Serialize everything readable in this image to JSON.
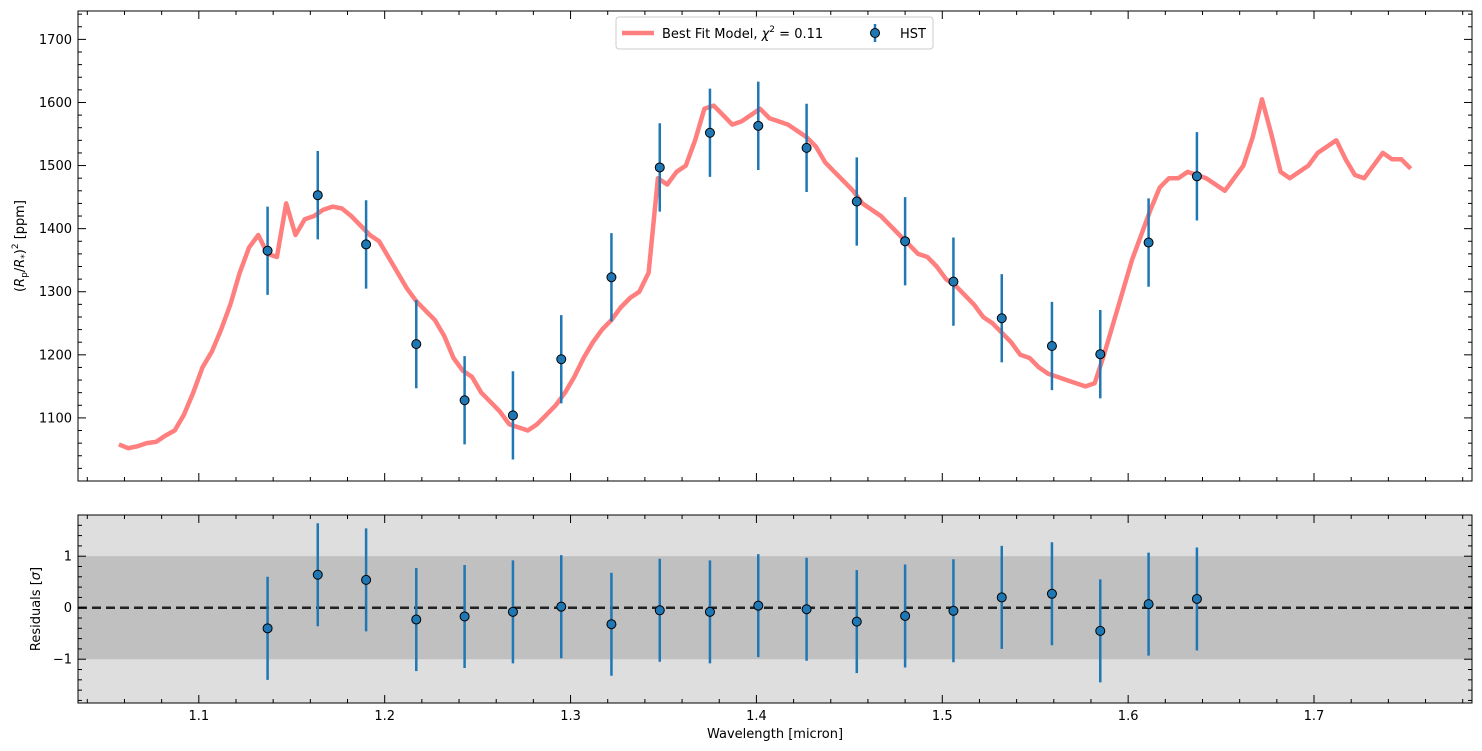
{
  "chart_data": [
    {
      "type": "line",
      "panel": "top",
      "ylabel": "(R_p/R_*)^2 [ppm]",
      "xlim": [
        1.035,
        1.785
      ],
      "ylim": [
        1000,
        1745
      ],
      "x_ticks": [
        1.1,
        1.2,
        1.3,
        1.4,
        1.5,
        1.6,
        1.7
      ],
      "y_ticks": [
        1100,
        1200,
        1300,
        1400,
        1500,
        1600,
        1700
      ],
      "legend_position": "top-center",
      "legend": [
        {
          "label": "Best Fit Model, χ² = 0.11",
          "marker": "line",
          "color": "#ff7f7f"
        },
        {
          "label": "HST",
          "marker": "errorbar",
          "color": "#1f77b4"
        }
      ],
      "series": [
        {
          "name": "Best Fit Model, χ² = 0.11",
          "color": "#ff7f7f",
          "x": [
            1.057,
            1.062,
            1.067,
            1.072,
            1.077,
            1.082,
            1.087,
            1.092,
            1.097,
            1.102,
            1.107,
            1.112,
            1.117,
            1.122,
            1.127,
            1.132,
            1.137,
            1.142,
            1.147,
            1.152,
            1.157,
            1.162,
            1.167,
            1.172,
            1.177,
            1.182,
            1.187,
            1.192,
            1.197,
            1.202,
            1.207,
            1.212,
            1.217,
            1.222,
            1.227,
            1.232,
            1.237,
            1.242,
            1.247,
            1.252,
            1.257,
            1.262,
            1.267,
            1.272,
            1.277,
            1.282,
            1.287,
            1.292,
            1.297,
            1.302,
            1.307,
            1.312,
            1.317,
            1.322,
            1.327,
            1.332,
            1.337,
            1.342,
            1.347,
            1.352,
            1.357,
            1.362,
            1.367,
            1.372,
            1.377,
            1.382,
            1.387,
            1.392,
            1.397,
            1.402,
            1.407,
            1.412,
            1.417,
            1.422,
            1.427,
            1.432,
            1.437,
            1.442,
            1.447,
            1.452,
            1.457,
            1.462,
            1.467,
            1.472,
            1.477,
            1.482,
            1.487,
            1.492,
            1.497,
            1.502,
            1.507,
            1.512,
            1.517,
            1.522,
            1.527,
            1.532,
            1.537,
            1.542,
            1.547,
            1.552,
            1.557,
            1.562,
            1.567,
            1.572,
            1.577,
            1.582,
            1.587,
            1.592,
            1.597,
            1.602,
            1.607,
            1.612,
            1.617,
            1.622,
            1.627,
            1.632,
            1.637,
            1.642,
            1.647,
            1.652,
            1.657,
            1.662,
            1.667,
            1.672,
            1.677,
            1.682,
            1.687,
            1.692,
            1.697,
            1.702,
            1.707,
            1.712,
            1.717,
            1.722,
            1.727,
            1.732,
            1.737,
            1.742,
            1.747,
            1.752
          ],
          "y": [
            1058,
            1052,
            1055,
            1060,
            1062,
            1072,
            1080,
            1105,
            1140,
            1180,
            1205,
            1240,
            1280,
            1330,
            1370,
            1390,
            1360,
            1355,
            1440,
            1390,
            1415,
            1420,
            1430,
            1435,
            1432,
            1420,
            1405,
            1390,
            1380,
            1355,
            1330,
            1305,
            1285,
            1270,
            1255,
            1230,
            1195,
            1175,
            1165,
            1140,
            1125,
            1110,
            1090,
            1085,
            1080,
            1090,
            1105,
            1120,
            1140,
            1165,
            1195,
            1220,
            1240,
            1255,
            1275,
            1290,
            1300,
            1330,
            1480,
            1470,
            1490,
            1500,
            1540,
            1590,
            1595,
            1580,
            1565,
            1570,
            1580,
            1590,
            1575,
            1570,
            1565,
            1555,
            1545,
            1530,
            1505,
            1490,
            1475,
            1460,
            1440,
            1430,
            1420,
            1405,
            1390,
            1375,
            1360,
            1355,
            1340,
            1320,
            1310,
            1295,
            1280,
            1260,
            1250,
            1235,
            1220,
            1200,
            1195,
            1180,
            1170,
            1165,
            1160,
            1155,
            1150,
            1155,
            1200,
            1250,
            1300,
            1350,
            1390,
            1430,
            1465,
            1480,
            1480,
            1490,
            1485,
            1480,
            1470,
            1460,
            1480,
            1500,
            1545,
            1605,
            1550,
            1490,
            1480,
            1490,
            1500,
            1520,
            1530,
            1540,
            1510,
            1485,
            1480,
            1500,
            1520,
            1510,
            1510,
            1495
          ]
        },
        {
          "name": "HST",
          "color": "#1f77b4",
          "x": [
            1.137,
            1.164,
            1.19,
            1.217,
            1.243,
            1.269,
            1.295,
            1.322,
            1.348,
            1.375,
            1.401,
            1.427,
            1.454,
            1.48,
            1.506,
            1.532,
            1.559,
            1.585,
            1.611,
            1.637
          ],
          "y": [
            1365,
            1453,
            1375,
            1217,
            1128,
            1104,
            1193,
            1323,
            1497,
            1552,
            1563,
            1528,
            1443,
            1380,
            1316,
            1258,
            1214,
            1201,
            1378,
            1483
          ],
          "yerr": [
            70,
            70,
            70,
            70,
            70,
            70,
            70,
            70,
            70,
            70,
            70,
            70,
            70,
            70,
            70,
            70,
            70,
            70,
            70,
            70
          ]
        }
      ]
    },
    {
      "type": "scatter",
      "panel": "bottom",
      "xlabel": "Wavelength [micron]",
      "ylabel": "Residuals [σ]",
      "xlim": [
        1.035,
        1.785
      ],
      "ylim": [
        -1.85,
        1.8
      ],
      "x_ticks": [
        1.1,
        1.2,
        1.3,
        1.4,
        1.5,
        1.6,
        1.7
      ],
      "y_ticks": [
        -1,
        0,
        1
      ],
      "bands": [
        {
          "from": -1.85,
          "to": 1.8,
          "color": "#dedede"
        },
        {
          "from": -1,
          "to": 1,
          "color": "#c0c0c0"
        }
      ],
      "reference_line": 0,
      "series": [
        {
          "name": "HST",
          "color": "#1f77b4",
          "x": [
            1.137,
            1.164,
            1.19,
            1.217,
            1.243,
            1.269,
            1.295,
            1.322,
            1.348,
            1.375,
            1.401,
            1.427,
            1.454,
            1.48,
            1.506,
            1.532,
            1.559,
            1.585,
            1.611,
            1.637
          ],
          "y": [
            -0.4,
            0.64,
            0.54,
            -0.23,
            -0.17,
            -0.08,
            0.02,
            -0.32,
            -0.05,
            -0.08,
            0.04,
            -0.03,
            -0.27,
            -0.16,
            -0.06,
            0.2,
            0.27,
            -0.45,
            0.07,
            0.17
          ],
          "yerr": [
            1,
            1,
            1,
            1,
            1,
            1,
            1,
            1,
            1,
            1,
            1,
            1,
            1,
            1,
            1,
            1,
            1,
            1,
            1,
            1
          ]
        }
      ]
    }
  ]
}
